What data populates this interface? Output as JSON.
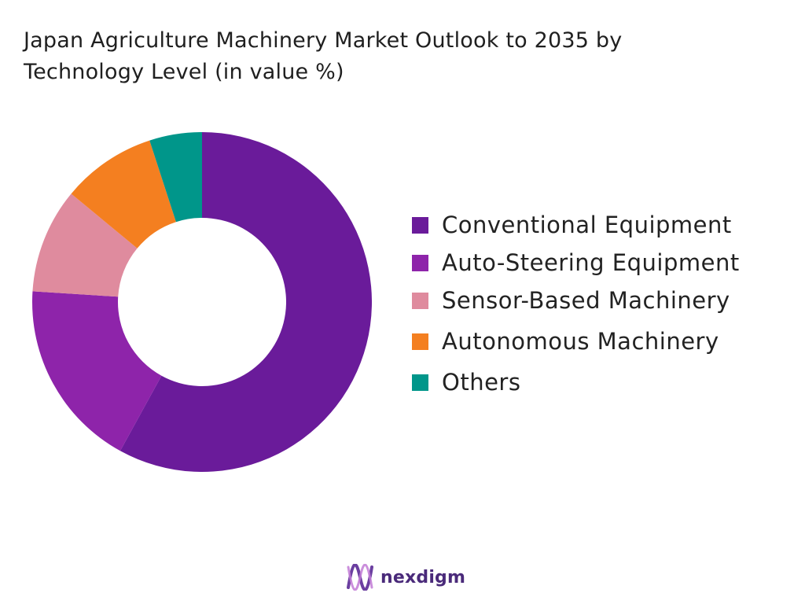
{
  "chart_data": {
    "type": "pie",
    "variant": "donut",
    "title_lines": [
      "Japan Agriculture Machinery Market Outlook to 2035 by",
      "Technology Level (in value %)"
    ],
    "categories": [
      "Conventional Equipment",
      "Auto-Steering Equipment",
      "Sensor-Based Machinery",
      "Autonomous Machinery",
      "Others"
    ],
    "values": [
      58,
      18,
      10,
      9,
      5
    ],
    "colors": [
      "#6a1b9a",
      "#8e24aa",
      "#df8b9e",
      "#f47f20",
      "#00968a"
    ],
    "legend_position": "right",
    "start_angle": "top, clockwise"
  },
  "brand": {
    "name": "nexdigm",
    "color": "#4a2a7a",
    "icon": "nexdigm-logo-icon"
  }
}
